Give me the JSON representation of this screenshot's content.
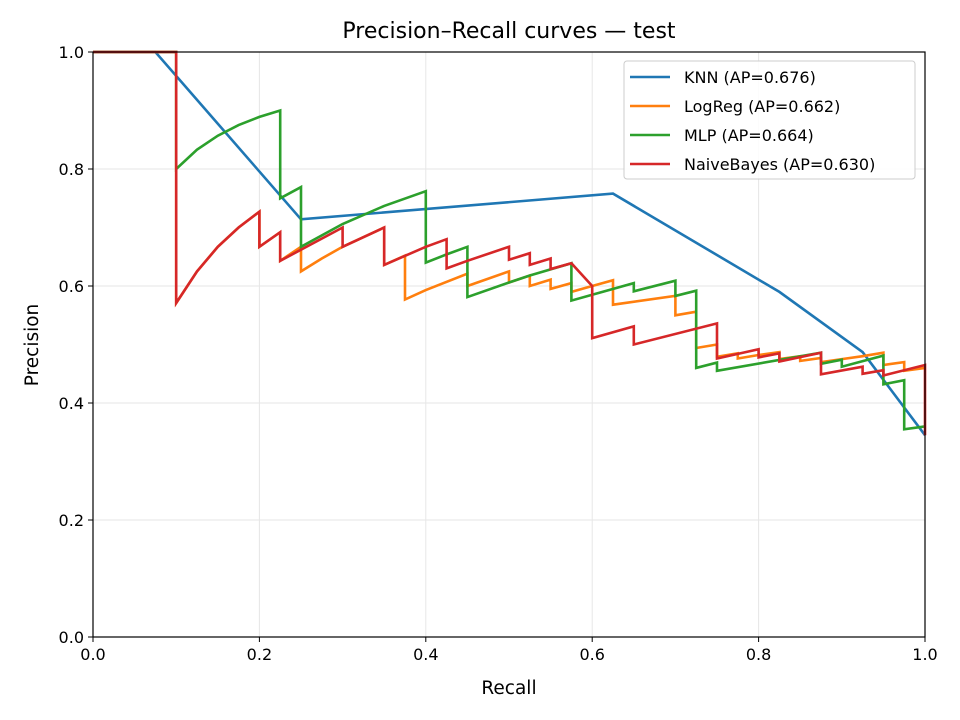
{
  "chart_data": {
    "type": "line",
    "title": "Precision–Recall curves — test",
    "xlabel": "Recall",
    "ylabel": "Precision",
    "xlim": [
      0,
      1
    ],
    "ylim": [
      0,
      1
    ],
    "x_ticks": [
      "0.0",
      "0.2",
      "0.4",
      "0.6",
      "0.8",
      "1.0"
    ],
    "y_ticks": [
      "0.0",
      "0.2",
      "0.4",
      "0.6",
      "0.8",
      "1.0"
    ],
    "grid": true,
    "legend_position": "top-right",
    "series": [
      {
        "name": "KNN (AP=0.676)",
        "color": "#1f77b4",
        "points": [
          [
            0,
            1
          ],
          [
            0.075,
            1
          ],
          [
            0.25,
            0.714
          ],
          [
            0.625,
            0.758
          ],
          [
            0.825,
            0.59
          ],
          [
            0.925,
            0.487
          ],
          [
            1.0,
            0.345
          ]
        ]
      },
      {
        "name": "LogReg (AP=0.662)",
        "color": "#ff7f0e",
        "points": [
          [
            0,
            1
          ],
          [
            0.1,
            1
          ],
          [
            0.1,
            0.571
          ],
          [
            0.125,
            0.625
          ],
          [
            0.15,
            0.667
          ],
          [
            0.175,
            0.7
          ],
          [
            0.2,
            0.727
          ],
          [
            0.2,
            0.667
          ],
          [
            0.225,
            0.692
          ],
          [
            0.225,
            0.643
          ],
          [
            0.25,
            0.667
          ],
          [
            0.25,
            0.625
          ],
          [
            0.275,
            0.647
          ],
          [
            0.3,
            0.667
          ],
          [
            0.35,
            0.7
          ],
          [
            0.35,
            0.636
          ],
          [
            0.375,
            0.652
          ],
          [
            0.375,
            0.577
          ],
          [
            0.4,
            0.593
          ],
          [
            0.45,
            0.621
          ],
          [
            0.45,
            0.6
          ],
          [
            0.5,
            0.625
          ],
          [
            0.5,
            0.606
          ],
          [
            0.525,
            0.618
          ],
          [
            0.525,
            0.6
          ],
          [
            0.55,
            0.611
          ],
          [
            0.55,
            0.595
          ],
          [
            0.575,
            0.605
          ],
          [
            0.575,
            0.59
          ],
          [
            0.6,
            0.6
          ],
          [
            0.625,
            0.61
          ],
          [
            0.625,
            0.568
          ],
          [
            0.7,
            0.583
          ],
          [
            0.7,
            0.55
          ],
          [
            0.725,
            0.556
          ],
          [
            0.725,
            0.494
          ],
          [
            0.75,
            0.5
          ],
          [
            0.75,
            0.479
          ],
          [
            0.775,
            0.485
          ],
          [
            0.775,
            0.476
          ],
          [
            0.8,
            0.482
          ],
          [
            0.825,
            0.487
          ],
          [
            0.825,
            0.475
          ],
          [
            0.85,
            0.48
          ],
          [
            0.85,
            0.472
          ],
          [
            0.875,
            0.477
          ],
          [
            0.875,
            0.47
          ],
          [
            0.9,
            0.475
          ],
          [
            0.925,
            0.48
          ],
          [
            0.95,
            0.486
          ],
          [
            0.95,
            0.465
          ],
          [
            0.975,
            0.47
          ],
          [
            0.975,
            0.455
          ],
          [
            1.0,
            0.46
          ]
        ]
      },
      {
        "name": "MLP (AP=0.664)",
        "color": "#2ca02c",
        "points": [
          [
            0,
            1
          ],
          [
            0.1,
            1
          ],
          [
            0.1,
            0.8
          ],
          [
            0.125,
            0.833
          ],
          [
            0.15,
            0.857
          ],
          [
            0.175,
            0.875
          ],
          [
            0.2,
            0.889
          ],
          [
            0.225,
            0.9
          ],
          [
            0.225,
            0.75
          ],
          [
            0.25,
            0.769
          ],
          [
            0.25,
            0.667
          ],
          [
            0.3,
            0.706
          ],
          [
            0.35,
            0.737
          ],
          [
            0.4,
            0.762
          ],
          [
            0.4,
            0.64
          ],
          [
            0.425,
            0.654
          ],
          [
            0.45,
            0.667
          ],
          [
            0.45,
            0.581
          ],
          [
            0.5,
            0.606
          ],
          [
            0.525,
            0.618
          ],
          [
            0.575,
            0.639
          ],
          [
            0.575,
            0.575
          ],
          [
            0.6,
            0.585
          ],
          [
            0.65,
            0.605
          ],
          [
            0.65,
            0.591
          ],
          [
            0.7,
            0.609
          ],
          [
            0.7,
            0.583
          ],
          [
            0.725,
            0.592
          ],
          [
            0.725,
            0.46
          ],
          [
            0.75,
            0.469
          ],
          [
            0.75,
            0.455
          ],
          [
            0.875,
            0.486
          ],
          [
            0.875,
            0.467
          ],
          [
            0.9,
            0.474
          ],
          [
            0.9,
            0.462
          ],
          [
            0.95,
            0.481
          ],
          [
            0.95,
            0.432
          ],
          [
            0.975,
            0.439
          ],
          [
            0.975,
            0.355
          ],
          [
            1.0,
            0.36
          ]
        ]
      },
      {
        "name": "NaiveBayes (AP=0.630)",
        "color": "#d62728",
        "points": [
          [
            0,
            1
          ],
          [
            0.1,
            1
          ],
          [
            0.1,
            0.571
          ],
          [
            0.125,
            0.625
          ],
          [
            0.15,
            0.667
          ],
          [
            0.175,
            0.7
          ],
          [
            0.2,
            0.727
          ],
          [
            0.2,
            0.667
          ],
          [
            0.225,
            0.692
          ],
          [
            0.225,
            0.643
          ],
          [
            0.3,
            0.7
          ],
          [
            0.3,
            0.667
          ],
          [
            0.35,
            0.7
          ],
          [
            0.35,
            0.636
          ],
          [
            0.4,
            0.667
          ],
          [
            0.425,
            0.68
          ],
          [
            0.425,
            0.63
          ],
          [
            0.45,
            0.643
          ],
          [
            0.5,
            0.667
          ],
          [
            0.5,
            0.645
          ],
          [
            0.525,
            0.656
          ],
          [
            0.525,
            0.636
          ],
          [
            0.55,
            0.647
          ],
          [
            0.55,
            0.629
          ],
          [
            0.575,
            0.639
          ],
          [
            0.6,
            0.6
          ],
          [
            0.6,
            0.511
          ],
          [
            0.65,
            0.531
          ],
          [
            0.65,
            0.5
          ],
          [
            0.75,
            0.536
          ],
          [
            0.75,
            0.476
          ],
          [
            0.775,
            0.484
          ],
          [
            0.8,
            0.492
          ],
          [
            0.8,
            0.478
          ],
          [
            0.825,
            0.485
          ],
          [
            0.825,
            0.471
          ],
          [
            0.875,
            0.486
          ],
          [
            0.875,
            0.449
          ],
          [
            0.925,
            0.462
          ],
          [
            0.925,
            0.45
          ],
          [
            0.95,
            0.456
          ],
          [
            0.95,
            0.447
          ],
          [
            1.0,
            0.465
          ],
          [
            1.0,
            0.345
          ]
        ]
      }
    ]
  }
}
